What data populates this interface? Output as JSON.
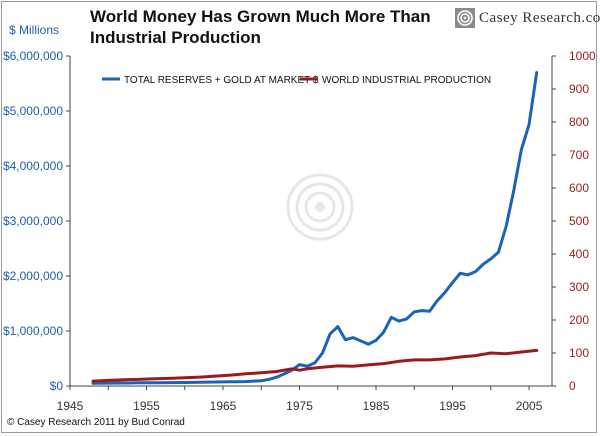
{
  "title_lines": [
    "World Money Has Grown Much More Than",
    "Industrial Production"
  ],
  "logo_text": "Casey Research.com",
  "footer": "© Casey Research 2011 by Bud Conrad",
  "chart_data": {
    "type": "line",
    "left_axis_label": "$ Millions",
    "left_ticks": [
      "$0",
      "$1,000,000",
      "$2,000,000",
      "$3,000,000",
      "$4,000,000",
      "$5,000,000",
      "$6,000,000"
    ],
    "left_ylim": [
      0,
      6000000
    ],
    "right_ticks": [
      "0",
      "100",
      "200",
      "300",
      "400",
      "500",
      "600",
      "700",
      "800",
      "900",
      "1000"
    ],
    "right_ylim": [
      0,
      1000
    ],
    "x_ticks": [
      "1945",
      "1955",
      "1965",
      "1975",
      "1985",
      "1995",
      "2005"
    ],
    "xlim": [
      1945,
      2008
    ],
    "legend_placement": "top-left",
    "colors": {
      "reserves": "#1a63b8",
      "production": "#9b1b1b",
      "left_axis": "#1f5fa8",
      "right_axis": "#9b1b1b"
    },
    "series": [
      {
        "name": "TOTAL RESERVES + GOLD AT MARKET $",
        "axis": "left",
        "color": "#1a63b8",
        "x": [
          1948,
          1950,
          1952,
          1954,
          1956,
          1958,
          1960,
          1962,
          1964,
          1966,
          1968,
          1969,
          1970,
          1971,
          1972,
          1973,
          1974,
          1975,
          1976,
          1977,
          1978,
          1979,
          1980,
          1981,
          1982,
          1983,
          1984,
          1985,
          1986,
          1987,
          1988,
          1989,
          1990,
          1991,
          1992,
          1993,
          1994,
          1995,
          1996,
          1997,
          1998,
          1999,
          2000,
          2001,
          2002,
          2003,
          2004,
          2005,
          2006
        ],
        "y": [
          50000,
          52000,
          55000,
          58000,
          60000,
          62000,
          64000,
          68000,
          72000,
          76000,
          80000,
          90000,
          95000,
          120000,
          160000,
          220000,
          290000,
          390000,
          360000,
          420000,
          600000,
          950000,
          1080000,
          840000,
          880000,
          820000,
          760000,
          830000,
          980000,
          1250000,
          1180000,
          1220000,
          1350000,
          1370000,
          1360000,
          1550000,
          1700000,
          1880000,
          2050000,
          2020000,
          2080000,
          2210000,
          2310000,
          2430000,
          2900000,
          3550000,
          4300000,
          4750000,
          5700000
        ]
      },
      {
        "name": "WORLD INDUSTRIAL PRODUCTION",
        "axis": "right",
        "color": "#9b1b1b",
        "x": [
          1948,
          1950,
          1952,
          1954,
          1956,
          1958,
          1960,
          1962,
          1964,
          1966,
          1968,
          1970,
          1972,
          1974,
          1975,
          1976,
          1978,
          1980,
          1982,
          1984,
          1986,
          1988,
          1990,
          1992,
          1994,
          1996,
          1998,
          2000,
          2002,
          2004,
          2006
        ],
        "y": [
          15,
          17,
          19,
          20,
          22,
          23,
          25,
          27,
          30,
          33,
          37,
          40,
          44,
          52,
          48,
          52,
          57,
          61,
          60,
          64,
          68,
          75,
          79,
          79,
          82,
          88,
          92,
          100,
          98,
          103,
          108
        ]
      }
    ]
  }
}
